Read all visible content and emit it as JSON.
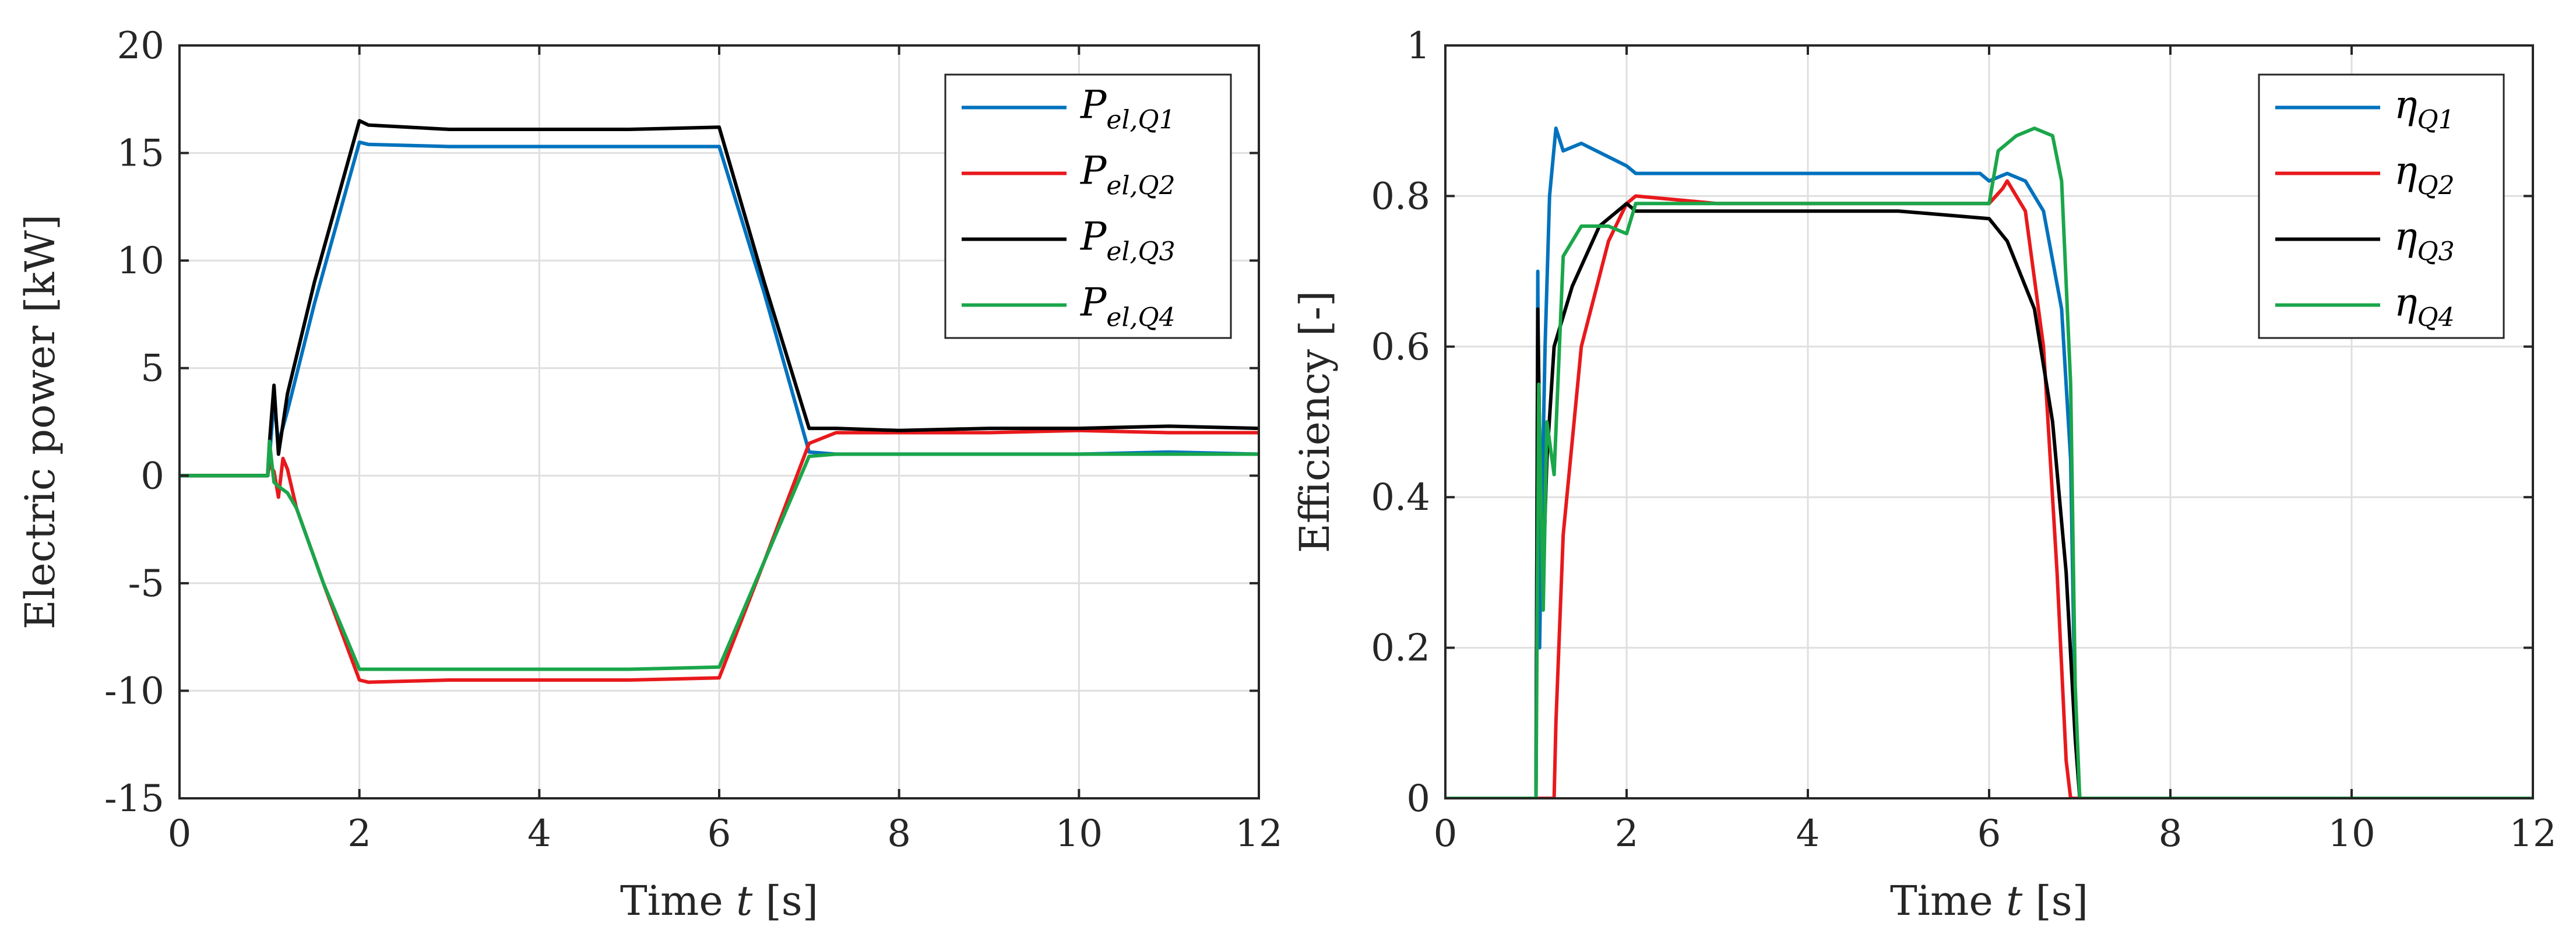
{
  "chart_data": [
    {
      "type": "line",
      "xlabel_prefix": "Time ",
      "xlabel_var": "t",
      "xlabel_unit": " [s]",
      "ylabel": "Electric power [kW]",
      "xlim": [
        0,
        12
      ],
      "ylim": [
        -15,
        20
      ],
      "xticks": [
        0,
        2,
        4,
        6,
        8,
        10,
        12
      ],
      "yticks": [
        -15,
        -10,
        -5,
        0,
        5,
        10,
        15,
        20
      ],
      "xtick_labels": [
        "0",
        "2",
        "4",
        "6",
        "8",
        "10",
        "12"
      ],
      "ytick_labels": [
        "-15",
        "-10",
        "-5",
        "0",
        "5",
        "10",
        "15",
        "20"
      ],
      "grid": true,
      "legend_position": "top-right",
      "series": [
        {
          "name": "P_el,Q1",
          "legend_main": "P",
          "legend_sub": "el,Q1",
          "color": "#0072BD",
          "x": [
            0,
            0.98,
            1.0,
            1.05,
            1.1,
            1.2,
            1.5,
            2.0,
            2.1,
            3,
            4,
            5,
            6.0,
            6.5,
            7.0,
            7.3,
            8,
            9,
            10,
            11,
            12
          ],
          "y": [
            0,
            0,
            0.8,
            3.5,
            1.5,
            3.0,
            8.0,
            15.5,
            15.4,
            15.3,
            15.3,
            15.3,
            15.3,
            8.5,
            1.1,
            1.0,
            1.0,
            1.0,
            1.0,
            1.1,
            1.0
          ]
        },
        {
          "name": "P_el,Q2",
          "legend_main": "P",
          "legend_sub": "el,Q2",
          "color": "#E8191C",
          "x": [
            0,
            0.98,
            1.0,
            1.05,
            1.1,
            1.15,
            1.2,
            1.3,
            1.6,
            2.0,
            2.1,
            3,
            4,
            5,
            6.0,
            6.5,
            7.0,
            7.3,
            8,
            9,
            10,
            11,
            12
          ],
          "y": [
            0,
            0,
            0.5,
            0.2,
            -1.0,
            0.8,
            0.3,
            -1.5,
            -5.0,
            -9.5,
            -9.6,
            -9.5,
            -9.5,
            -9.5,
            -9.4,
            -4.0,
            1.5,
            2.0,
            2.0,
            2.0,
            2.1,
            2.0,
            2.0
          ]
        },
        {
          "name": "P_el,Q3",
          "legend_main": "P",
          "legend_sub": "el,Q3",
          "color": "#000000",
          "x": [
            0,
            0.98,
            1.0,
            1.05,
            1.1,
            1.2,
            1.5,
            2.0,
            2.1,
            3,
            4,
            5,
            6.0,
            6.5,
            7.0,
            7.3,
            8,
            9,
            10,
            11,
            12
          ],
          "y": [
            0,
            0,
            1.5,
            4.2,
            1.0,
            3.8,
            9.0,
            16.5,
            16.3,
            16.1,
            16.1,
            16.1,
            16.2,
            9.0,
            2.2,
            2.2,
            2.1,
            2.2,
            2.2,
            2.3,
            2.2
          ]
        },
        {
          "name": "P_el,Q4",
          "legend_main": "P",
          "legend_sub": "el,Q4",
          "color": "#1AA64A",
          "x": [
            0,
            0.98,
            1.0,
            1.05,
            1.1,
            1.2,
            1.3,
            1.6,
            2.0,
            2.1,
            3,
            4,
            5,
            6.0,
            6.5,
            7.0,
            7.3,
            8,
            9,
            10,
            11,
            12
          ],
          "y": [
            0,
            0,
            1.6,
            -0.3,
            -0.5,
            -0.8,
            -1.5,
            -5.0,
            -9.0,
            -9.0,
            -9.0,
            -9.0,
            -9.0,
            -8.9,
            -4.0,
            0.9,
            1.0,
            1.0,
            1.0,
            1.0,
            1.0,
            1.0
          ]
        }
      ]
    },
    {
      "type": "line",
      "xlabel_prefix": "Time ",
      "xlabel_var": "t",
      "xlabel_unit": " [s]",
      "ylabel": "Efficiency [-]",
      "xlim": [
        0,
        12
      ],
      "ylim": [
        0,
        1
      ],
      "xticks": [
        0,
        2,
        4,
        6,
        8,
        10,
        12
      ],
      "yticks": [
        0,
        0.2,
        0.4,
        0.6,
        0.8,
        1
      ],
      "xtick_labels": [
        "0",
        "2",
        "4",
        "6",
        "8",
        "10",
        "12"
      ],
      "ytick_labels": [
        "0",
        "0.2",
        "0.4",
        "0.6",
        "0.8",
        "1"
      ],
      "grid": true,
      "legend_position": "top-right",
      "series": [
        {
          "name": "eta_Q1",
          "legend_main": "η",
          "legend_sub": "Q1",
          "color": "#0072BD",
          "x": [
            0,
            1.0,
            1.02,
            1.04,
            1.06,
            1.1,
            1.15,
            1.22,
            1.3,
            1.5,
            2.0,
            2.1,
            3,
            4,
            5,
            5.9,
            6.0,
            6.2,
            6.4,
            6.6,
            6.8,
            6.9,
            6.95,
            7.0,
            8,
            10,
            12
          ],
          "y": [
            0,
            0,
            0.7,
            0.2,
            0.35,
            0.6,
            0.8,
            0.89,
            0.86,
            0.87,
            0.84,
            0.83,
            0.83,
            0.83,
            0.83,
            0.83,
            0.82,
            0.83,
            0.82,
            0.78,
            0.65,
            0.45,
            0.1,
            0,
            0,
            0,
            0
          ]
        },
        {
          "name": "eta_Q2",
          "legend_main": "η",
          "legend_sub": "Q2",
          "color": "#E8191C",
          "x": [
            0,
            1.2,
            1.22,
            1.3,
            1.5,
            1.8,
            2.0,
            2.1,
            3,
            4,
            5,
            6.0,
            6.15,
            6.2,
            6.4,
            6.6,
            6.75,
            6.85,
            6.9,
            7.0,
            8,
            10,
            12
          ],
          "y": [
            0,
            0,
            0.1,
            0.35,
            0.6,
            0.74,
            0.79,
            0.8,
            0.79,
            0.79,
            0.79,
            0.79,
            0.81,
            0.82,
            0.78,
            0.6,
            0.3,
            0.05,
            0,
            0,
            0,
            0,
            0
          ]
        },
        {
          "name": "eta_Q3",
          "legend_main": "η",
          "legend_sub": "Q3",
          "color": "#000000",
          "x": [
            0,
            1.0,
            1.02,
            1.05,
            1.08,
            1.12,
            1.2,
            1.4,
            1.7,
            2.0,
            2.1,
            3,
            4,
            5,
            6.0,
            6.2,
            6.5,
            6.7,
            6.85,
            6.95,
            7.0,
            8,
            10,
            12
          ],
          "y": [
            0,
            0,
            0.65,
            0.4,
            0.3,
            0.45,
            0.6,
            0.68,
            0.76,
            0.79,
            0.78,
            0.78,
            0.78,
            0.78,
            0.77,
            0.74,
            0.65,
            0.5,
            0.3,
            0.08,
            0,
            0,
            0,
            0
          ]
        },
        {
          "name": "eta_Q4",
          "legend_main": "η",
          "legend_sub": "Q4",
          "color": "#1AA64A",
          "x": [
            0,
            1.0,
            1.03,
            1.08,
            1.12,
            1.2,
            1.3,
            1.5,
            1.8,
            2.0,
            2.1,
            3,
            4,
            5,
            6.0,
            6.1,
            6.3,
            6.5,
            6.7,
            6.8,
            6.9,
            6.95,
            7.0,
            8,
            10,
            12
          ],
          "y": [
            0,
            0,
            0.55,
            0.25,
            0.5,
            0.43,
            0.72,
            0.76,
            0.76,
            0.75,
            0.79,
            0.79,
            0.79,
            0.79,
            0.79,
            0.86,
            0.88,
            0.89,
            0.88,
            0.82,
            0.55,
            0.15,
            0,
            0,
            0,
            0
          ]
        }
      ]
    }
  ]
}
